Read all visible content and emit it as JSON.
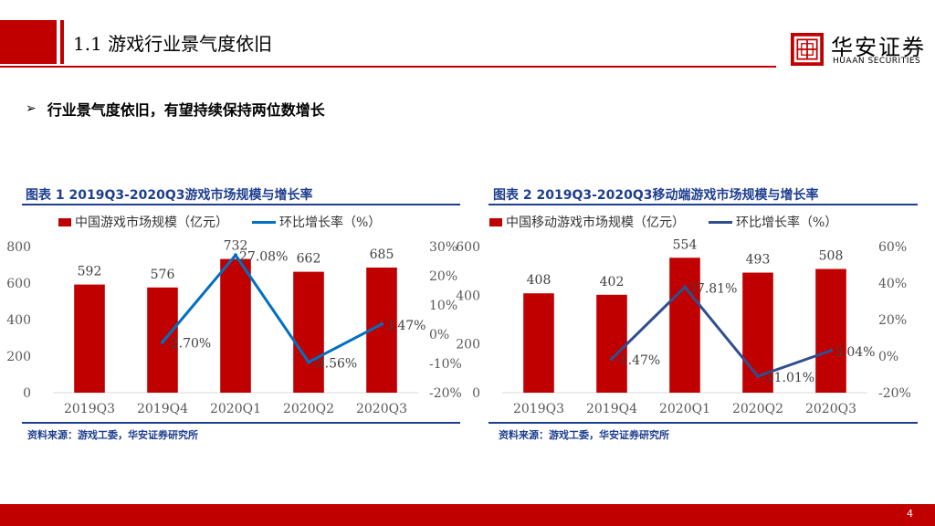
{
  "header": {
    "title": "1.1 游戏行业景气度依旧",
    "logo_cn": "华安证券",
    "logo_en": "HUAAN SECURITIES"
  },
  "headline": {
    "bullet": "➢",
    "text": "行业景气度依旧，有望持续保持两位数增长"
  },
  "colors": {
    "accent": "#c00000",
    "navy": "#1f3f8f",
    "line1": "#0070c0",
    "line2": "#2f4f8f"
  },
  "chart_data": [
    {
      "type": "bar",
      "title": "图表 1  2019Q3-2020Q3游戏市场规模与增长率",
      "categories": [
        "2019Q3",
        "2019Q4",
        "2020Q1",
        "2020Q2",
        "2020Q3"
      ],
      "series": [
        {
          "name": "中国游戏市场规模（亿元）",
          "type": "bar",
          "axis": "left",
          "values": [
            592,
            576,
            732,
            662,
            685
          ],
          "labels": [
            "592",
            "576",
            "732",
            "662",
            "685"
          ]
        },
        {
          "name": "环比增长率（%）",
          "type": "line",
          "axis": "right",
          "values": [
            null,
            -2.7,
            27.08,
            -9.56,
            3.47
          ],
          "labels": [
            "",
            "-2.70%",
            "27.08%",
            "-9.56%",
            "3.47%"
          ]
        }
      ],
      "ylim_left": [
        0,
        800
      ],
      "yticks_left": [
        "0",
        "200",
        "400",
        "600",
        "800"
      ],
      "ylim_right": [
        -20,
        30
      ],
      "yticks_right": [
        "-20%",
        "-10%",
        "0%",
        "10%",
        "20%",
        "30%"
      ],
      "legend": "top",
      "source": "资料来源：游戏工委，华安证券研究所"
    },
    {
      "type": "bar",
      "title": "图表 2  2019Q3-2020Q3移动端游戏市场规模与增长率",
      "categories": [
        "2019Q3",
        "2019Q4",
        "2020Q1",
        "2020Q2",
        "2020Q3"
      ],
      "series": [
        {
          "name": "中国移动游戏市场规模（亿元）",
          "type": "bar",
          "axis": "left",
          "values": [
            408,
            402,
            554,
            493,
            508
          ],
          "labels": [
            "408",
            "402",
            "554",
            "493",
            "508"
          ]
        },
        {
          "name": "环比增长率（%）",
          "type": "line",
          "axis": "right",
          "values": [
            null,
            -1.47,
            37.81,
            -11.01,
            3.04
          ],
          "labels": [
            "",
            "-1.47%",
            "37.81%",
            "-11.01%",
            "3.04%"
          ]
        }
      ],
      "ylim_left": [
        0,
        600
      ],
      "yticks_left": [
        "0",
        "200",
        "400",
        "600"
      ],
      "ylim_right": [
        -20,
        60
      ],
      "yticks_right": [
        "-20%",
        "0%",
        "20%",
        "40%",
        "60%"
      ],
      "legend": "top",
      "source": "资料来源：游戏工委，华安证券研究所"
    }
  ],
  "footer": {
    "page": "4"
  }
}
